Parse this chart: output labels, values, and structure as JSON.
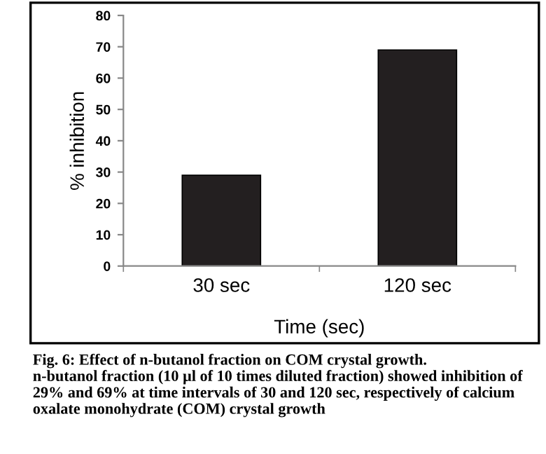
{
  "chart_data": {
    "type": "bar",
    "title": "Fig. 6: Effect of n-butanol fraction on COM crystal growth.",
    "annotations": [
      "n-butanol fraction (10 µl of 10 times diluted fraction) showed inhibition of 29% and 69% at time intervals of 30 and 120 sec, respectively of calcium oxalate monohydrate (COM) crystal growth"
    ],
    "xlabel": "Time (sec)",
    "ylabel": "% inhibition",
    "categories": [
      "30 sec",
      "120 sec"
    ],
    "values": [
      29,
      69
    ],
    "color": "#231f20",
    "ylim": [
      0,
      80
    ],
    "yticks": [
      0,
      10,
      20,
      30,
      40,
      50,
      60,
      70,
      80
    ],
    "grid": false,
    "legend": false
  }
}
